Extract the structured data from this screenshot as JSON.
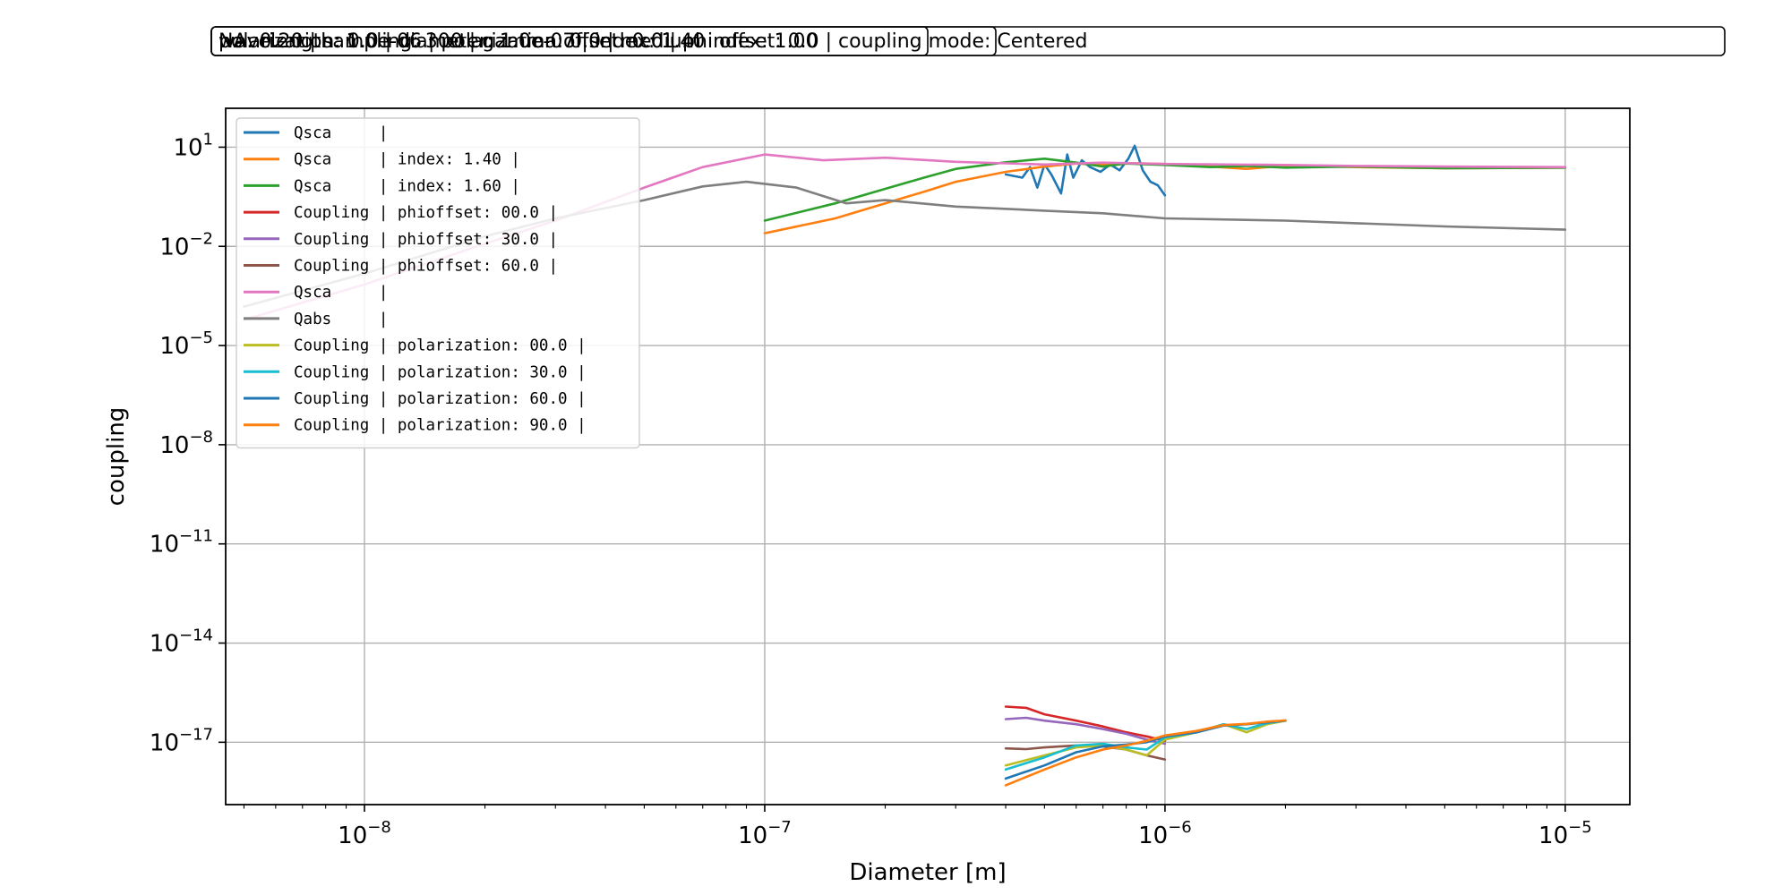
{
  "header": {
    "boxes": [
      "wavelength: 1.0e-06 | polarization: 0.0 | medium index: 1.00",
      "polarization: 0.0 | diameter: 1.0e-07 | index: 1.40",
      "NA: 0.20 | sampling: 300 | gamma offset: 0.0 | phi offset: 0.0 | coupling mode: Centered"
    ]
  },
  "chart_data": {
    "type": "line",
    "title": "",
    "xlabel": "Diameter [m]",
    "ylabel": "coupling",
    "xscale": "log",
    "yscale": "log",
    "xlim": [
      4.5e-09,
      1.45e-05
    ],
    "ylim": [
      1.3e-19,
      150
    ],
    "grid": true,
    "legend_position": "upper-left",
    "x_ticks": [
      {
        "value": 1e-08,
        "base": "10",
        "exp": "−8"
      },
      {
        "value": 1e-07,
        "base": "10",
        "exp": "−7"
      },
      {
        "value": 1e-06,
        "base": "10",
        "exp": "−6"
      },
      {
        "value": 1e-05,
        "base": "10",
        "exp": "−5"
      }
    ],
    "y_ticks": [
      {
        "value": 10,
        "base": "10",
        "exp": "1"
      },
      {
        "value": 0.01,
        "base": "10",
        "exp": "−2"
      },
      {
        "value": 1e-05,
        "base": "10",
        "exp": "−5"
      },
      {
        "value": 1e-08,
        "base": "10",
        "exp": "−8"
      },
      {
        "value": 1e-11,
        "base": "10",
        "exp": "−11"
      },
      {
        "value": 1e-14,
        "base": "10",
        "exp": "−14"
      },
      {
        "value": 1e-17,
        "base": "10",
        "exp": "−17"
      }
    ],
    "series": [
      {
        "name": "Qsca     |",
        "color": "#1f77b4",
        "x": [
          4e-07,
          4.4e-07,
          4.6e-07,
          4.8e-07,
          5e-07,
          5.2e-07,
          5.5e-07,
          5.7e-07,
          5.9e-07,
          6.2e-07,
          6.5e-07,
          6.9e-07,
          7.3e-07,
          7.7e-07,
          8.1e-07,
          8.4e-07,
          8.8e-07,
          9.2e-07,
          9.6e-07,
          1e-06
        ],
        "y": [
          1.5,
          1.2,
          2.5,
          0.6,
          3.0,
          1.5,
          0.4,
          6.0,
          1.2,
          4.0,
          2.5,
          1.8,
          3.0,
          2.0,
          4.5,
          11.0,
          2.0,
          0.9,
          0.7,
          0.35
        ]
      },
      {
        "name": "Qsca     | index: 1.40 |",
        "color": "#ff7f0e",
        "x": [
          1e-07,
          1.5e-07,
          2e-07,
          2.5e-07,
          3e-07,
          4e-07,
          5e-07,
          6e-07,
          7e-07,
          8e-07,
          1e-06,
          1.3e-06,
          1.6e-06,
          2e-06,
          3e-06,
          5e-06,
          1e-05
        ],
        "y": [
          0.025,
          0.07,
          0.2,
          0.45,
          0.9,
          1.8,
          2.6,
          3.2,
          3.0,
          3.3,
          3.1,
          2.6,
          2.2,
          2.8,
          2.5,
          2.3,
          2.4
        ]
      },
      {
        "name": "Qsca     | index: 1.60 |",
        "color": "#2ca02c",
        "x": [
          1e-07,
          1.5e-07,
          2e-07,
          2.5e-07,
          3e-07,
          4e-07,
          5e-07,
          6e-07,
          7e-07,
          8e-07,
          1e-06,
          1.3e-06,
          1.6e-06,
          2e-06,
          3e-06,
          5e-06,
          1e-05
        ],
        "y": [
          0.06,
          0.2,
          0.55,
          1.2,
          2.2,
          3.5,
          4.5,
          3.4,
          2.6,
          3.2,
          2.9,
          2.5,
          2.7,
          2.4,
          2.6,
          2.3,
          2.4
        ]
      },
      {
        "name": "Coupling | phioffset: 00.0 |",
        "color": "#d62728",
        "x": [
          4e-07,
          4.5e-07,
          5e-07,
          6e-07,
          7e-07,
          8e-07,
          9e-07,
          1e-06
        ],
        "y": [
          1.2e-16,
          1.1e-16,
          7e-17,
          4.5e-17,
          3e-17,
          2e-17,
          1.5e-17,
          1.1e-17
        ]
      },
      {
        "name": "Coupling | phioffset: 30.0 |",
        "color": "#9467bd",
        "x": [
          4e-07,
          4.5e-07,
          5e-07,
          6e-07,
          7e-07,
          8e-07,
          9e-07,
          1e-06
        ],
        "y": [
          5e-17,
          5.5e-17,
          4.5e-17,
          3.5e-17,
          2.5e-17,
          1.8e-17,
          1.2e-17,
          9e-18
        ]
      },
      {
        "name": "Coupling | phioffset: 60.0 |",
        "color": "#8c564b",
        "x": [
          4e-07,
          4.5e-07,
          5e-07,
          6e-07,
          7e-07,
          8e-07,
          9e-07,
          1e-06
        ],
        "y": [
          6.5e-18,
          6.2e-18,
          7e-18,
          8e-18,
          7.5e-18,
          6e-18,
          4e-18,
          3e-18
        ]
      },
      {
        "name": "Qsca     |",
        "color": "#e377c2",
        "x": [
          5e-09,
          1e-08,
          2e-08,
          3e-08,
          5e-08,
          7e-08,
          1e-07,
          1.4e-07,
          2e-07,
          3e-07,
          5e-07,
          7e-07,
          1e-06,
          2e-06,
          3e-06,
          5e-06,
          1e-05
        ],
        "y": [
          6e-05,
          0.0007,
          0.012,
          0.06,
          0.6,
          2.5,
          6.0,
          4.0,
          4.8,
          3.6,
          3.0,
          3.4,
          3.1,
          2.9,
          2.7,
          2.6,
          2.5
        ]
      },
      {
        "name": "Qabs     |",
        "color": "#7f7f7f",
        "x": [
          5e-09,
          1e-08,
          2e-08,
          3e-08,
          5e-08,
          7e-08,
          9e-08,
          1.2e-07,
          1.6e-07,
          2e-07,
          3e-07,
          5e-07,
          7e-07,
          1e-06,
          2e-06,
          3e-06,
          5e-06,
          1e-05
        ],
        "y": [
          0.00015,
          0.0015,
          0.02,
          0.07,
          0.25,
          0.65,
          0.9,
          0.6,
          0.2,
          0.25,
          0.16,
          0.12,
          0.1,
          0.07,
          0.06,
          0.05,
          0.04,
          0.032
        ]
      },
      {
        "name": "Coupling | polarization: 00.0 |",
        "color": "#bcbd22",
        "x": [
          4e-07,
          5e-07,
          6e-07,
          7e-07,
          8e-07,
          9e-07,
          1e-06,
          1.2e-06,
          1.4e-06,
          1.6e-06,
          1.8e-06,
          2e-06
        ],
        "y": [
          2e-18,
          4e-18,
          7e-18,
          8e-18,
          6e-18,
          4e-18,
          1.2e-17,
          2e-17,
          3.5e-17,
          2e-17,
          3.5e-17,
          4.5e-17
        ]
      },
      {
        "name": "Coupling | polarization: 30.0 |",
        "color": "#17becf",
        "x": [
          4e-07,
          5e-07,
          6e-07,
          7e-07,
          8e-07,
          9e-07,
          1e-06,
          1.2e-06,
          1.4e-06,
          1.6e-06,
          1.8e-06,
          2e-06
        ],
        "y": [
          1.5e-18,
          3.5e-18,
          8e-18,
          9e-18,
          7e-18,
          6e-18,
          1.4e-17,
          2e-17,
          3.5e-17,
          2.5e-17,
          3.8e-17,
          4.5e-17
        ]
      },
      {
        "name": "Coupling | polarization: 60.0 |",
        "color": "#1f77b4",
        "x": [
          4e-07,
          5e-07,
          6e-07,
          7e-07,
          8e-07,
          9e-07,
          1e-06,
          1.2e-06,
          1.4e-06,
          1.6e-06,
          1.8e-06,
          2e-06
        ],
        "y": [
          8e-19,
          2e-18,
          5e-18,
          7.5e-18,
          8.5e-18,
          1e-17,
          1.5e-17,
          2e-17,
          3.2e-17,
          3.5e-17,
          4e-17,
          4.5e-17
        ]
      },
      {
        "name": "Coupling | polarization: 90.0 |",
        "color": "#ff7f0e",
        "x": [
          4e-07,
          5e-07,
          6e-07,
          7e-07,
          8e-07,
          9e-07,
          1e-06,
          1.2e-06,
          1.4e-06,
          1.6e-06,
          1.8e-06,
          2e-06
        ],
        "y": [
          5e-19,
          1.5e-18,
          3.5e-18,
          6e-18,
          8e-18,
          1.1e-17,
          1.6e-17,
          2.2e-17,
          3.3e-17,
          3.6e-17,
          4.2e-17,
          4.6e-17
        ]
      }
    ]
  }
}
